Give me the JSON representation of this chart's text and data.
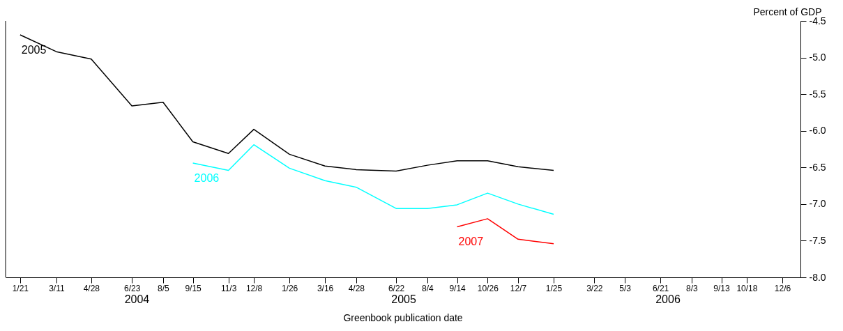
{
  "chart_data": {
    "type": "line",
    "xlabel": "Greenbook publication date",
    "ylabel": "Percent of GDP",
    "x": [
      "2004-01-21",
      "2004-03-11",
      "2004-04-28",
      "2004-06-23",
      "2004-08-05",
      "2004-09-15",
      "2004-11-03",
      "2004-12-08",
      "2005-01-26",
      "2005-03-16",
      "2005-04-28",
      "2005-06-22",
      "2005-08-04",
      "2005-09-14",
      "2005-10-26",
      "2005-12-07",
      "2006-01-25"
    ],
    "series": [
      {
        "name": "2005",
        "color": "#000000",
        "values": [
          -4.69,
          -4.92,
          -5.02,
          -5.66,
          -5.61,
          -6.15,
          -6.31,
          -5.98,
          -6.32,
          -6.48,
          -6.53,
          -6.55,
          -6.47,
          -6.41,
          -6.41,
          -6.49,
          -6.54
        ]
      },
      {
        "name": "2006",
        "color": "#00ffff",
        "values": [
          null,
          null,
          null,
          null,
          null,
          -6.44,
          -6.54,
          -6.19,
          -6.51,
          -6.68,
          -6.77,
          -7.06,
          -7.06,
          -7.01,
          -6.85,
          -7.0,
          -7.14
        ]
      },
      {
        "name": "2007",
        "color": "#ff0000",
        "values": [
          null,
          null,
          null,
          null,
          null,
          null,
          null,
          null,
          null,
          null,
          null,
          null,
          null,
          -7.31,
          -7.2,
          -7.48,
          -7.54
        ]
      }
    ],
    "xlim": [
      "2004-01-01",
      "2006-12-31"
    ],
    "xticks": [
      {
        "value": "2004-01-21",
        "label": "1/21"
      },
      {
        "value": "2004-03-11",
        "label": "3/11"
      },
      {
        "value": "2004-04-28",
        "label": "4/28"
      },
      {
        "value": "2004-06-23",
        "label": "6/23"
      },
      {
        "value": "2004-08-05",
        "label": "8/5"
      },
      {
        "value": "2004-09-15",
        "label": "9/15"
      },
      {
        "value": "2004-11-03",
        "label": "11/3"
      },
      {
        "value": "2004-12-08",
        "label": "12/8"
      },
      {
        "value": "2005-01-26",
        "label": "1/26"
      },
      {
        "value": "2005-03-16",
        "label": "3/16"
      },
      {
        "value": "2005-04-28",
        "label": "4/28"
      },
      {
        "value": "2005-06-22",
        "label": "6/22"
      },
      {
        "value": "2005-08-04",
        "label": "8/4"
      },
      {
        "value": "2005-09-14",
        "label": "9/14"
      },
      {
        "value": "2005-10-26",
        "label": "10/26"
      },
      {
        "value": "2005-12-07",
        "label": "12/7"
      },
      {
        "value": "2006-01-25",
        "label": "1/25"
      },
      {
        "value": "2006-03-22",
        "label": "3/22"
      },
      {
        "value": "2006-05-03",
        "label": "5/3"
      },
      {
        "value": "2006-06-21",
        "label": "6/21"
      },
      {
        "value": "2006-08-03",
        "label": "8/3"
      },
      {
        "value": "2006-09-13",
        "label": "9/13"
      },
      {
        "value": "2006-10-18",
        "label": "10/18"
      },
      {
        "value": "2006-12-06",
        "label": "12/6"
      }
    ],
    "ylim": [
      -8.0,
      -4.5
    ],
    "yticks": [
      {
        "value": -4.5,
        "label": "-4.5"
      },
      {
        "value": -5.0,
        "label": "-5.0"
      },
      {
        "value": -5.5,
        "label": "-5.5"
      },
      {
        "value": -6.0,
        "label": "-6.0"
      },
      {
        "value": -6.5,
        "label": "-6.5"
      },
      {
        "value": -7.0,
        "label": "-7.0"
      },
      {
        "value": -7.5,
        "label": "-7.5"
      },
      {
        "value": -8.0,
        "label": "-8.0"
      }
    ],
    "annotations": [
      "2004",
      "2005",
      "2006"
    ],
    "grid": false,
    "legend": false
  }
}
